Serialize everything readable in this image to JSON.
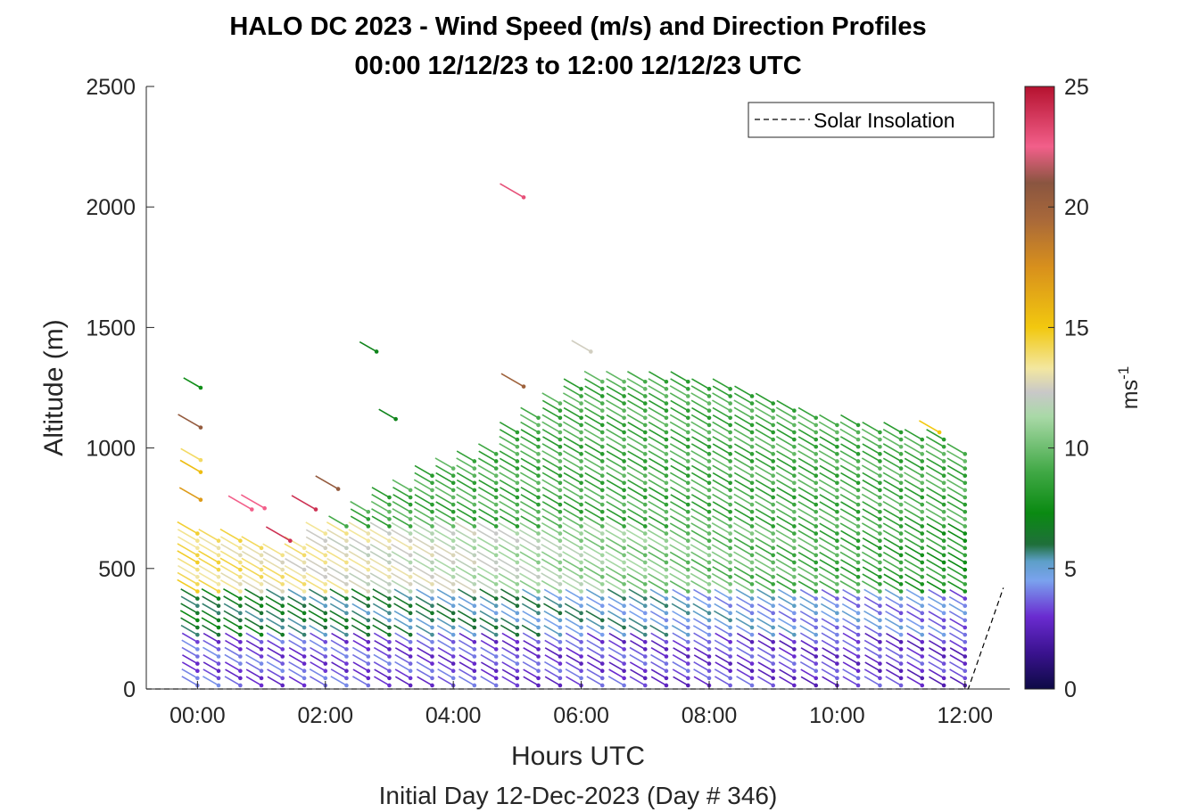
{
  "chart_data": {
    "type": "wind-barb-profile",
    "title": "HALO DC 2023 - Wind Speed (m/s) and Direction Profiles",
    "subtitle": "00:00 12/12/23 to 12:00 12/12/23  UTC",
    "xlabel": "Hours UTC",
    "ylabel": "Altitude (m)",
    "footer": "Initial Day 12-Dec-2023 (Day # 346)",
    "xlim": [
      -0.8,
      12.7
    ],
    "ylim": [
      0,
      2500
    ],
    "x_ticks": [
      0,
      2,
      4,
      6,
      8,
      10,
      12
    ],
    "x_tick_labels": [
      "00:00",
      "02:00",
      "04:00",
      "06:00",
      "08:00",
      "10:00",
      "12:00"
    ],
    "y_ticks": [
      0,
      500,
      1000,
      1500,
      2000,
      2500
    ],
    "y_tick_labels": [
      "0",
      "500",
      "1000",
      "1500",
      "2000",
      "2500"
    ],
    "legend": {
      "label": "Solar Insolation",
      "position": "top-right",
      "line_style": "dashed"
    },
    "solar_insolation": [
      {
        "x": -0.8,
        "y": 0
      },
      {
        "x": 12.05,
        "y": 0
      },
      {
        "x": 12.6,
        "y": 420
      }
    ],
    "colorbar": {
      "label": "ms",
      "label_exponent": "-1",
      "range": [
        0,
        25
      ],
      "ticks": [
        0,
        5,
        10,
        15,
        20,
        25
      ],
      "colors": [
        {
          "v": 0,
          "c": "#0d0a45"
        },
        {
          "v": 1.5,
          "c": "#3a128f"
        },
        {
          "v": 3,
          "c": "#6a2bd0"
        },
        {
          "v": 4.5,
          "c": "#7aa2ee"
        },
        {
          "v": 5.3,
          "c": "#5d9fc8"
        },
        {
          "v": 6,
          "c": "#1f6f3a"
        },
        {
          "v": 7.3,
          "c": "#0a8a12"
        },
        {
          "v": 9,
          "c": "#40a845"
        },
        {
          "v": 11.3,
          "c": "#a9d9a7"
        },
        {
          "v": 12.3,
          "c": "#c8c8c8"
        },
        {
          "v": 13.3,
          "c": "#f3e7a0"
        },
        {
          "v": 15,
          "c": "#f2c80f"
        },
        {
          "v": 17.5,
          "c": "#d8901c"
        },
        {
          "v": 19.5,
          "c": "#a8683a"
        },
        {
          "v": 21,
          "c": "#8a5540"
        },
        {
          "v": 22.5,
          "c": "#f25f8a"
        },
        {
          "v": 25,
          "c": "#b5122f"
        }
      ]
    },
    "profile_times": [
      0,
      0.33,
      0.67,
      1,
      1.33,
      1.67,
      2,
      2.33,
      2.67,
      3,
      3.33,
      3.67,
      4,
      4.33,
      4.67,
      5,
      5.33,
      5.67,
      6,
      6.33,
      6.67,
      7,
      7.33,
      7.67,
      8,
      8.33,
      8.67,
      9,
      9.33,
      9.67,
      10,
      10.33,
      10.67,
      11,
      11.33,
      11.67,
      12
    ],
    "profile_top_altitude": [
      650,
      640,
      630,
      600,
      580,
      600,
      650,
      700,
      750,
      800,
      850,
      900,
      920,
      950,
      1000,
      1080,
      1150,
      1200,
      1250,
      1300,
      1300,
      1300,
      1300,
      1280,
      1270,
      1250,
      1230,
      1200,
      1180,
      1150,
      1120,
      1100,
      1080,
      1070,
      1060,
      1050,
      1000
    ],
    "range_gate_spacing_m": 30,
    "speed_layers": [
      {
        "alt": [
          0,
          200
        ],
        "speed_early": 3.5,
        "speed_late": 3
      },
      {
        "alt": [
          200,
          400
        ],
        "speed_early": 6.5,
        "speed_late": 4
      },
      {
        "alt": [
          400,
          650
        ],
        "speed_early": 14,
        "speed_late": 8
      },
      {
        "alt": [
          650,
          1300
        ],
        "speed_early": 9,
        "speed_late": 9
      }
    ],
    "wind_direction_deg": 300,
    "isolated_barbs": [
      {
        "x": 0.05,
        "y": 1250,
        "speed": 7.5
      },
      {
        "x": 0.05,
        "y": 1085,
        "speed": 20.5
      },
      {
        "x": 0.05,
        "y": 950,
        "speed": 14
      },
      {
        "x": 0.05,
        "y": 900,
        "speed": 15.5
      },
      {
        "x": 0.05,
        "y": 785,
        "speed": 17
      },
      {
        "x": 0.85,
        "y": 745,
        "speed": 22.5
      },
      {
        "x": 1.05,
        "y": 750,
        "speed": 22.5
      },
      {
        "x": 1.45,
        "y": 615,
        "speed": 24
      },
      {
        "x": 1.85,
        "y": 745,
        "speed": 24
      },
      {
        "x": 2.2,
        "y": 830,
        "speed": 20.5
      },
      {
        "x": 2.8,
        "y": 1400,
        "speed": 7
      },
      {
        "x": 3.1,
        "y": 1120,
        "speed": 7
      },
      {
        "x": 5.1,
        "y": 2040,
        "speed": 23
      },
      {
        "x": 5.1,
        "y": 1255,
        "speed": 20
      },
      {
        "x": 6.15,
        "y": 1400,
        "speed": 12.5
      },
      {
        "x": 11.6,
        "y": 1065,
        "speed": 15
      }
    ]
  }
}
